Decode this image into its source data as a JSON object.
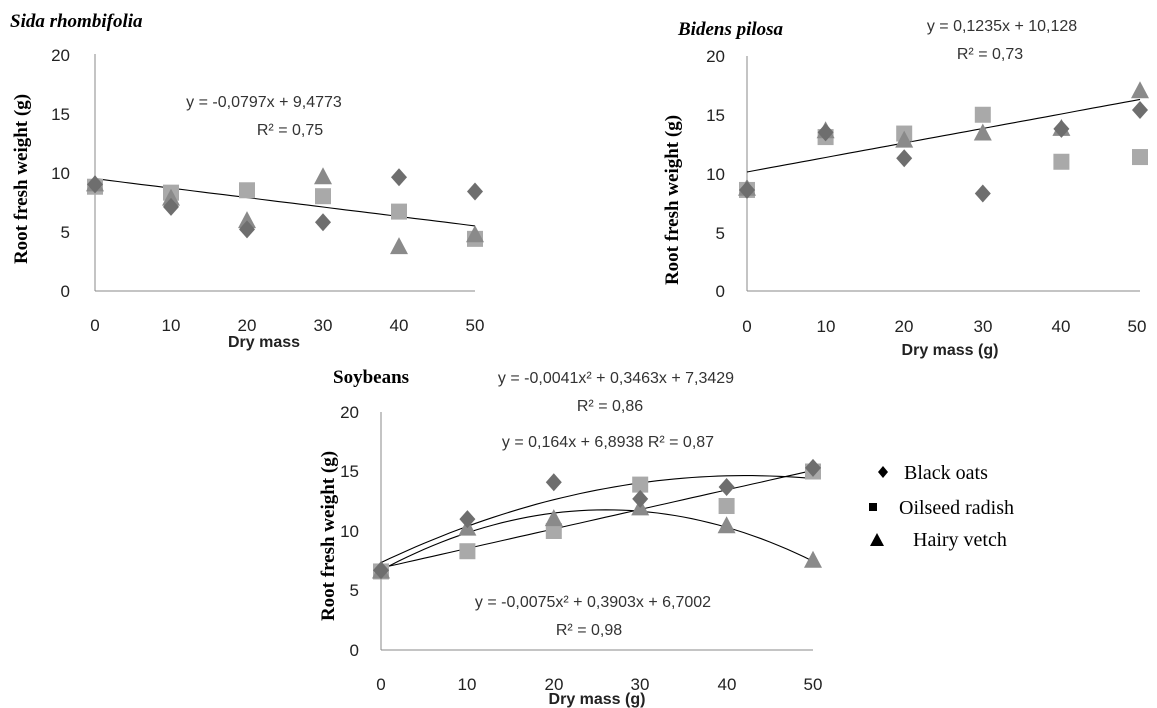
{
  "chart_data": [
    {
      "type": "scatter",
      "title": "Sida rhombifolia",
      "ylabel": "Root fresh weight (g)",
      "xlabel": "Dry mass",
      "xlim": [
        0,
        50
      ],
      "ylim": [
        0,
        20
      ],
      "xticks": [
        "0",
        "10",
        "20",
        "30",
        "40",
        "50"
      ],
      "yticks": [
        "0",
        "5",
        "10",
        "15",
        "20"
      ],
      "x": [
        0,
        10,
        20,
        30,
        40,
        50
      ],
      "series": [
        {
          "name": "Black oats",
          "marker": "diamond",
          "color": "#6e6e6e",
          "values": [
            9.0,
            7.1,
            5.2,
            5.8,
            9.6,
            8.4
          ]
        },
        {
          "name": "Oilseed radish",
          "marker": "square",
          "color": "#a9a9a9",
          "values": [
            8.8,
            8.3,
            8.5,
            8.0,
            6.7,
            4.4
          ]
        },
        {
          "name": "Hairy vetch",
          "marker": "triangle",
          "color": "#8a8a8a",
          "values": [
            9.0,
            7.8,
            5.9,
            9.6,
            3.7,
            4.7
          ]
        }
      ],
      "fit": {
        "kind": "linear",
        "coef": [
          9.4773,
          -0.0797
        ]
      },
      "equations": [
        "y = -0,0797x + 9,4773",
        "R² = 0,75"
      ]
    },
    {
      "type": "scatter",
      "title": "Bidens pilosa",
      "ylabel": "Root fresh weight (g)",
      "xlabel": "Dry  mass (g)",
      "xlim": [
        0,
        50
      ],
      "ylim": [
        0,
        20
      ],
      "xticks": [
        "0",
        "10",
        "20",
        "30",
        "40",
        "50"
      ],
      "yticks": [
        "0",
        "5",
        "10",
        "15",
        "20"
      ],
      "x": [
        0,
        10,
        20,
        30,
        40,
        50
      ],
      "series": [
        {
          "name": "Black oats",
          "marker": "diamond",
          "color": "#6e6e6e",
          "values": [
            8.6,
            13.5,
            11.3,
            8.3,
            13.8,
            15.4
          ]
        },
        {
          "name": "Oilseed radish",
          "marker": "square",
          "color": "#a9a9a9",
          "values": [
            8.6,
            13.1,
            13.4,
            15.0,
            11.0,
            11.4
          ]
        },
        {
          "name": "Hairy vetch",
          "marker": "triangle",
          "color": "#8a8a8a",
          "values": [
            8.7,
            13.6,
            12.8,
            13.4,
            13.8,
            17.0
          ]
        }
      ],
      "fit": {
        "kind": "linear",
        "coef": [
          10.128,
          0.1235
        ]
      },
      "equations": [
        "y = 0,1235x + 10,128",
        "R² = 0,73"
      ]
    },
    {
      "type": "scatter",
      "title": "Soybeans",
      "ylabel": "Root fresh weight (g)",
      "xlabel": "Dry mass (g)",
      "xlim": [
        0,
        50
      ],
      "ylim": [
        0,
        20
      ],
      "xticks": [
        "0",
        "10",
        "20",
        "30",
        "40",
        "50"
      ],
      "yticks": [
        "0",
        "5",
        "10",
        "15",
        "20"
      ],
      "x": [
        0,
        10,
        20,
        30,
        40,
        50
      ],
      "series": [
        {
          "name": "Black oats",
          "marker": "diamond",
          "color": "#6e6e6e",
          "values": [
            6.7,
            11.0,
            14.1,
            12.7,
            13.7,
            15.3
          ]
        },
        {
          "name": "Oilseed radish",
          "marker": "square",
          "color": "#a9a9a9",
          "values": [
            6.6,
            8.3,
            10.0,
            13.9,
            12.1,
            15.0
          ]
        },
        {
          "name": "Hairy vetch",
          "marker": "triangle",
          "color": "#8a8a8a",
          "values": [
            6.6,
            10.2,
            11.0,
            11.9,
            10.4,
            7.5
          ]
        }
      ],
      "fits": [
        {
          "kind": "quadratic",
          "coef": [
            7.3429,
            0.3463,
            -0.0041
          ]
        },
        {
          "kind": "linear",
          "coef": [
            6.8938,
            0.164
          ]
        },
        {
          "kind": "quadratic",
          "coef": [
            6.7002,
            0.3903,
            -0.0075
          ]
        }
      ],
      "equations": [
        "y = -0,0041x² + 0,3463x + 7,3429",
        "R² = 0,86",
        "y = 0,164x + 6,8938  R² = 0,87",
        "y = -0,0075x² + 0,3903x + 6,7002",
        "R² = 0,98"
      ]
    }
  ],
  "legend": {
    "items": [
      {
        "label": "Black oats",
        "marker": "diamond"
      },
      {
        "label": "Oilseed radish",
        "marker": "square"
      },
      {
        "label": "Hairy vetch",
        "marker": "triangle"
      }
    ]
  }
}
